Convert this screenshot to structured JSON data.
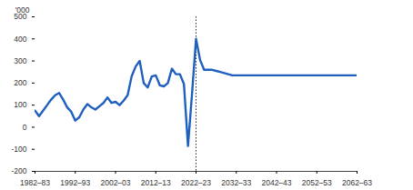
{
  "chart_data": {
    "type": "line",
    "y_label": "'000",
    "x": [
      1982,
      1983,
      1984,
      1985,
      1986,
      1987,
      1988,
      1989,
      1990,
      1991,
      1992,
      1993,
      1994,
      1995,
      1996,
      1997,
      1998,
      1999,
      2000,
      2001,
      2002,
      2003,
      2004,
      2005,
      2006,
      2007,
      2008,
      2009,
      2010,
      2011,
      2012,
      2013,
      2014,
      2015,
      2016,
      2017,
      2018,
      2019,
      2020,
      2021,
      2022,
      2023,
      2024,
      2025,
      2026,
      2027,
      2028,
      2029,
      2030,
      2031,
      2032,
      2033,
      2034,
      2035,
      2036,
      2037,
      2038,
      2039,
      2040,
      2041,
      2042,
      2043,
      2044,
      2045,
      2046,
      2047,
      2048,
      2049,
      2050,
      2051,
      2052,
      2053,
      2054,
      2055,
      2056,
      2057,
      2058,
      2059,
      2060,
      2061,
      2062
    ],
    "values": [
      75,
      50,
      75,
      100,
      125,
      145,
      155,
      125,
      90,
      70,
      30,
      45,
      80,
      105,
      90,
      80,
      95,
      110,
      135,
      110,
      115,
      100,
      120,
      145,
      230,
      275,
      300,
      200,
      180,
      230,
      235,
      190,
      185,
      200,
      265,
      240,
      240,
      195,
      -85,
      150,
      400,
      305,
      260,
      260,
      260,
      255,
      250,
      245,
      240,
      235,
      235,
      235,
      235,
      235,
      235,
      235,
      235,
      235,
      235,
      235,
      235,
      235,
      235,
      235,
      235,
      235,
      235,
      235,
      235,
      235,
      235,
      235,
      235,
      235,
      235,
      235,
      235,
      235,
      235,
      235,
      235
    ],
    "color": "#1f5fbf",
    "xlim": [
      1982,
      2062
    ],
    "xticks": [
      {
        "value": 1982,
        "label": "1982–83"
      },
      {
        "value": 1992,
        "label": "1992–93"
      },
      {
        "value": 2002,
        "label": "2002–03"
      },
      {
        "value": 2012,
        "label": "2012–13"
      },
      {
        "value": 2022,
        "label": "2022–23"
      },
      {
        "value": 2032,
        "label": "2032–33"
      },
      {
        "value": 2042,
        "label": "2042–43"
      },
      {
        "value": 2052,
        "label": "2052–53"
      },
      {
        "value": 2062,
        "label": "2062–63"
      }
    ],
    "ylim": [
      -200,
      500
    ],
    "yticks": [
      -200,
      -100,
      0,
      100,
      200,
      300,
      400,
      500
    ],
    "vline": 2022,
    "line_style": "solid",
    "grid": false
  }
}
